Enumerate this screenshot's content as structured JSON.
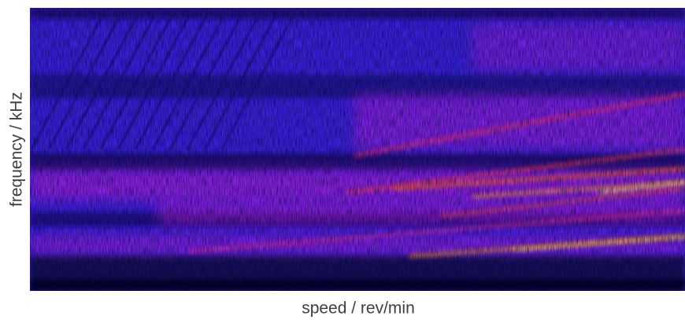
{
  "chart_data": {
    "type": "spectrogram",
    "x_label": "speed / rev/min",
    "y_label": "frequency / kHz"
  }
}
